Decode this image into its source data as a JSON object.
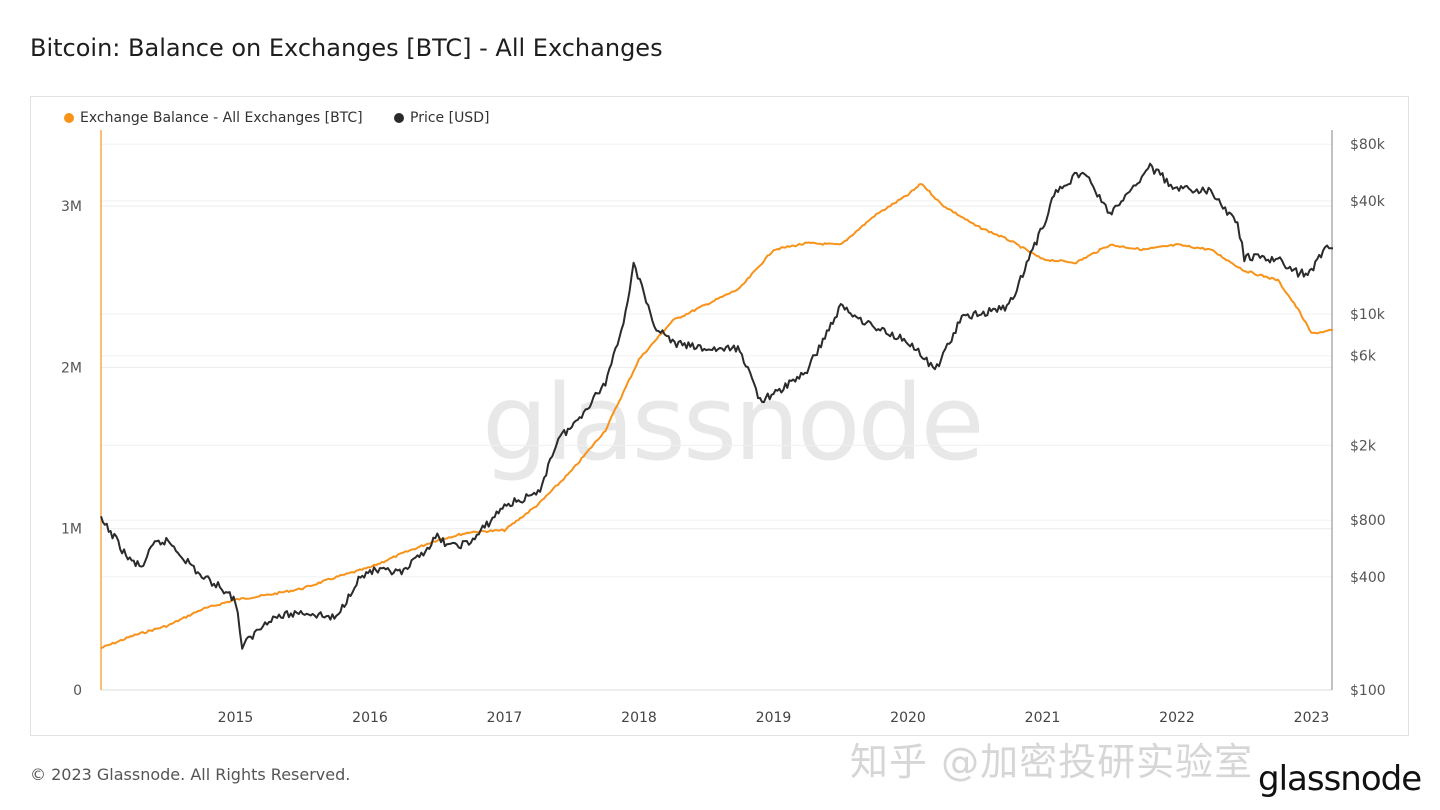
{
  "title": "Bitcoin: Balance on Exchanges [BTC] - All Exchanges",
  "footer": "© 2023 Glassnode. All Rights Reserved.",
  "watermark": "glassnode",
  "logo": "glassnode",
  "overlay_text": "知乎 @加密投研实验室",
  "chart_data": {
    "type": "line",
    "title": "Bitcoin: Balance on Exchanges [BTC] - All Exchanges",
    "legend_position": "top-left",
    "grid": true,
    "x_range": [
      2014.0,
      2023.17
    ],
    "x_ticks": [
      "2015",
      "2016",
      "2017",
      "2018",
      "2019",
      "2020",
      "2021",
      "2022",
      "2023"
    ],
    "y_left": {
      "range": [
        0,
        3500000
      ],
      "ticks": [
        0,
        1000000,
        2000000,
        3000000
      ],
      "tick_labels": [
        "0",
        "1M",
        "2M",
        "3M"
      ]
    },
    "y_right": {
      "scale": "log",
      "range": [
        100,
        90000
      ],
      "ticks": [
        100,
        400,
        800,
        2000,
        6000,
        10000,
        40000,
        80000
      ],
      "tick_labels": [
        "$100",
        "$400",
        "$800",
        "$2k",
        "$6k",
        "$10k",
        "$40k",
        "$80k"
      ]
    },
    "series": [
      {
        "name": "Exchange Balance - All Exchanges [BTC]",
        "axis": "left",
        "color": "#f7931a",
        "x": [
          2014.0,
          2014.25,
          2014.5,
          2014.75,
          2015.0,
          2015.25,
          2015.5,
          2015.75,
          2016.0,
          2016.25,
          2016.5,
          2016.75,
          2017.0,
          2017.25,
          2017.5,
          2017.75,
          2018.0,
          2018.25,
          2018.5,
          2018.75,
          2019.0,
          2019.25,
          2019.5,
          2019.75,
          2020.0,
          2020.1,
          2020.25,
          2020.5,
          2020.75,
          2021.0,
          2021.25,
          2021.5,
          2021.75,
          2022.0,
          2022.25,
          2022.5,
          2022.75,
          2022.9,
          2023.0,
          2023.16
        ],
        "values": [
          260000,
          340000,
          400000,
          500000,
          560000,
          590000,
          630000,
          700000,
          760000,
          850000,
          930000,
          980000,
          990000,
          1150000,
          1360000,
          1610000,
          2050000,
          2290000,
          2390000,
          2490000,
          2730000,
          2770000,
          2760000,
          2940000,
          3070000,
          3140000,
          3010000,
          2880000,
          2790000,
          2670000,
          2650000,
          2760000,
          2730000,
          2760000,
          2730000,
          2600000,
          2540000,
          2360000,
          2210000,
          2230000
        ]
      },
      {
        "name": "Price [USD]",
        "axis": "right",
        "color": "#2b2b2b",
        "x": [
          2014.0,
          2014.1,
          2014.2,
          2014.3,
          2014.4,
          2014.5,
          2014.6,
          2014.75,
          2014.9,
          2015.0,
          2015.05,
          2015.25,
          2015.5,
          2015.75,
          2015.9,
          2016.0,
          2016.25,
          2016.5,
          2016.6,
          2016.75,
          2017.0,
          2017.25,
          2017.4,
          2017.5,
          2017.75,
          2017.9,
          2017.96,
          2018.1,
          2018.25,
          2018.5,
          2018.75,
          2018.9,
          2019.0,
          2019.25,
          2019.5,
          2019.75,
          2020.0,
          2020.2,
          2020.4,
          2020.75,
          2021.0,
          2021.1,
          2021.3,
          2021.5,
          2021.6,
          2021.8,
          2022.0,
          2022.25,
          2022.45,
          2022.5,
          2022.75,
          2022.9,
          2023.0,
          2023.1,
          2023.16
        ],
        "values": [
          800,
          650,
          500,
          450,
          600,
          620,
          520,
          400,
          350,
          300,
          170,
          240,
          260,
          240,
          380,
          430,
          420,
          650,
          580,
          610,
          960,
          1100,
          2200,
          2500,
          4300,
          10000,
          19000,
          9000,
          7000,
          6500,
          6500,
          3500,
          3700,
          5000,
          11000,
          8500,
          7200,
          5000,
          9500,
          11000,
          29000,
          45000,
          58000,
          34000,
          40000,
          61000,
          46000,
          45000,
          30000,
          20000,
          19500,
          16500,
          16600,
          23000,
          22400
        ]
      }
    ]
  }
}
